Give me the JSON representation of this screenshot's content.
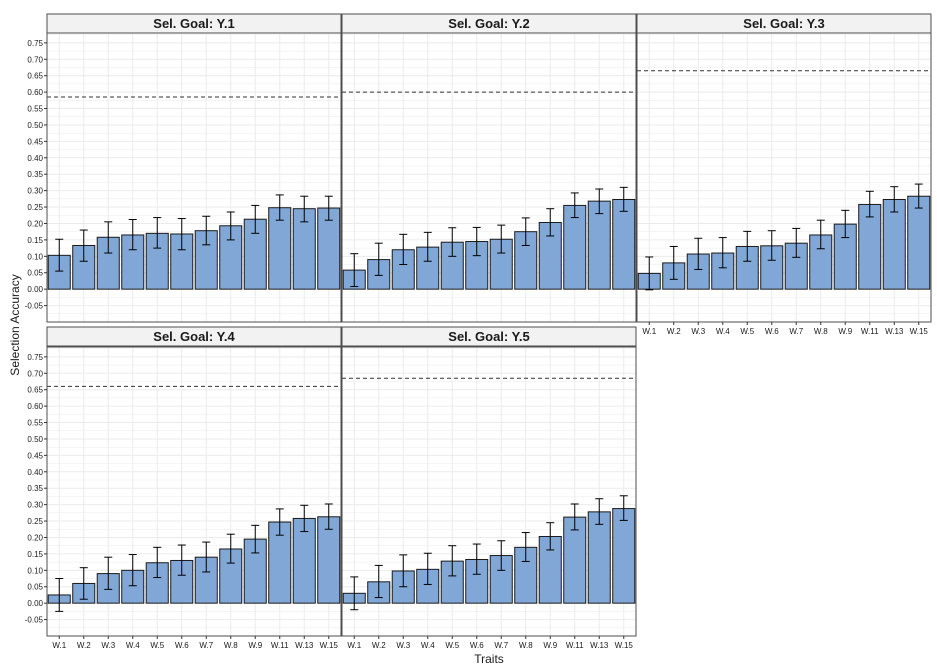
{
  "chart_data": {
    "type": "bar",
    "xlabel": "Traits",
    "ylabel": "Selection Accuracy",
    "ylim": [
      -0.1,
      0.78
    ],
    "yticks": [
      "-0.05",
      "0.00",
      "0.05",
      "0.10",
      "0.15",
      "0.20",
      "0.25",
      "0.30",
      "0.35",
      "0.40",
      "0.45",
      "0.50",
      "0.55",
      "0.60",
      "0.65",
      "0.70",
      "0.75"
    ],
    "categories": [
      "W.1",
      "W.2",
      "W.3",
      "W.4",
      "W.5",
      "W.6",
      "W.7",
      "W.8",
      "W.9",
      "W.11",
      "W.13",
      "W.15"
    ],
    "grid": true,
    "colors": {
      "bar_fill": "#81a7d6",
      "bar_stroke": "#1a1a1a",
      "strip_fill": "#f2f2f2",
      "panel_border": "#4d4d4d",
      "grid": "#ebebeb"
    },
    "panels": [
      {
        "title": "Sel. Goal: Y.1",
        "reference_line": 0.585,
        "values": [
          0.103,
          0.133,
          0.158,
          0.165,
          0.17,
          0.168,
          0.178,
          0.193,
          0.213,
          0.248,
          0.245,
          0.247
        ],
        "error_low": [
          0.055,
          0.085,
          0.11,
          0.12,
          0.125,
          0.12,
          0.135,
          0.15,
          0.17,
          0.21,
          0.205,
          0.21
        ],
        "error_high": [
          0.152,
          0.18,
          0.205,
          0.212,
          0.218,
          0.215,
          0.222,
          0.235,
          0.255,
          0.287,
          0.283,
          0.283
        ]
      },
      {
        "title": "Sel. Goal: Y.2",
        "reference_line": 0.6,
        "values": [
          0.058,
          0.09,
          0.12,
          0.128,
          0.143,
          0.145,
          0.152,
          0.175,
          0.203,
          0.255,
          0.268,
          0.273
        ],
        "error_low": [
          0.008,
          0.042,
          0.075,
          0.085,
          0.1,
          0.102,
          0.11,
          0.133,
          0.162,
          0.218,
          0.23,
          0.237
        ],
        "error_high": [
          0.108,
          0.14,
          0.167,
          0.173,
          0.187,
          0.188,
          0.195,
          0.217,
          0.245,
          0.293,
          0.305,
          0.31
        ]
      },
      {
        "title": "Sel. Goal: Y.3",
        "reference_line": 0.665,
        "values": [
          0.048,
          0.08,
          0.107,
          0.11,
          0.13,
          0.132,
          0.14,
          0.165,
          0.198,
          0.258,
          0.273,
          0.283
        ],
        "error_low": [
          -0.002,
          0.03,
          0.06,
          0.065,
          0.085,
          0.088,
          0.097,
          0.123,
          0.157,
          0.22,
          0.235,
          0.247
        ],
        "error_high": [
          0.098,
          0.13,
          0.155,
          0.157,
          0.176,
          0.178,
          0.185,
          0.21,
          0.24,
          0.298,
          0.312,
          0.32
        ]
      },
      {
        "title": "Sel. Goal: Y.4",
        "reference_line": 0.66,
        "values": [
          0.025,
          0.06,
          0.09,
          0.1,
          0.123,
          0.13,
          0.14,
          0.165,
          0.195,
          0.247,
          0.258,
          0.263
        ],
        "error_low": [
          -0.025,
          0.012,
          0.042,
          0.053,
          0.078,
          0.085,
          0.095,
          0.122,
          0.153,
          0.207,
          0.218,
          0.225
        ],
        "error_high": [
          0.075,
          0.108,
          0.14,
          0.148,
          0.17,
          0.177,
          0.186,
          0.21,
          0.237,
          0.287,
          0.298,
          0.302
        ]
      },
      {
        "title": "Sel. Goal: Y.5",
        "reference_line": 0.685,
        "values": [
          0.03,
          0.065,
          0.098,
          0.103,
          0.128,
          0.133,
          0.145,
          0.17,
          0.203,
          0.262,
          0.278,
          0.288
        ],
        "error_low": [
          -0.02,
          0.017,
          0.05,
          0.057,
          0.083,
          0.088,
          0.1,
          0.127,
          0.162,
          0.223,
          0.24,
          0.252
        ],
        "error_high": [
          0.08,
          0.115,
          0.147,
          0.152,
          0.175,
          0.18,
          0.19,
          0.215,
          0.245,
          0.302,
          0.318,
          0.327
        ]
      }
    ]
  }
}
